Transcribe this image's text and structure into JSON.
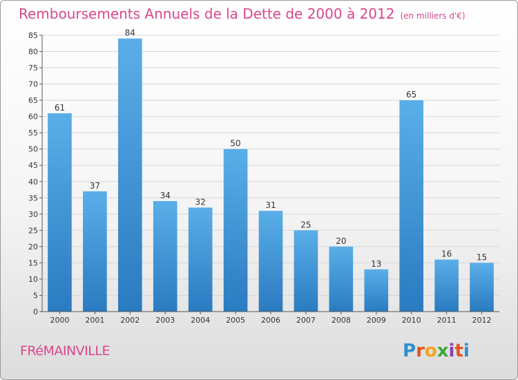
{
  "header": {
    "title": "Remboursements Annuels de la Dette de 2000 à 2012",
    "unit": "(en milliers d'€)"
  },
  "footer": {
    "commune": "FRéMAINVILLE",
    "brand_letters": [
      {
        "char": "P",
        "color": "#2f8fd0"
      },
      {
        "char": "r",
        "color": "#e8531f"
      },
      {
        "char": "o",
        "color": "#f0a41e"
      },
      {
        "char": "x",
        "color": "#3aa83a"
      },
      {
        "char": "i",
        "color": "#8a3fb0"
      },
      {
        "char": "t",
        "color": "#e8531f"
      },
      {
        "char": "i",
        "color": "#2f8fd0"
      }
    ]
  },
  "colors": {
    "accent": "#d8478a",
    "bar_top": "#5aaee8",
    "bar_bottom": "#2a7bc0",
    "grid": "#d6d6d6",
    "axis": "#555555"
  },
  "chart_data": {
    "type": "bar",
    "title": "Remboursements Annuels de la Dette de 2000 à 2012",
    "subtitle": "(en milliers d'€)",
    "categories": [
      "2000",
      "2001",
      "2002",
      "2003",
      "2004",
      "2005",
      "2006",
      "2007",
      "2008",
      "2009",
      "2010",
      "2011",
      "2012"
    ],
    "values": [
      61,
      37,
      84,
      34,
      32,
      50,
      31,
      25,
      20,
      13,
      65,
      16,
      15
    ],
    "xlabel": "",
    "ylabel": "",
    "ylim": [
      0,
      85
    ],
    "yticks": [
      0,
      5,
      10,
      15,
      20,
      25,
      30,
      35,
      40,
      45,
      50,
      55,
      60,
      65,
      70,
      75,
      80,
      85
    ],
    "grid": true,
    "data_labels": true
  }
}
